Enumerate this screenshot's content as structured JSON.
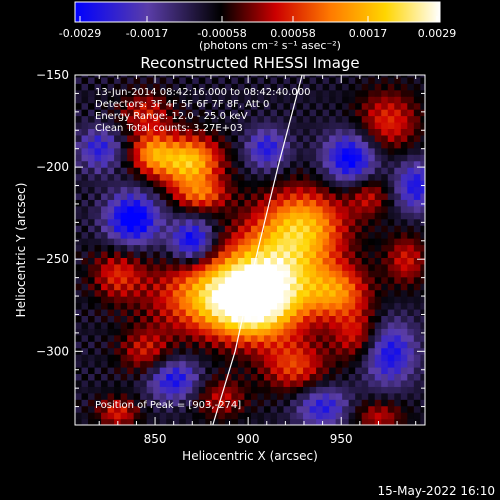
{
  "colorbar": {
    "tick_labels": [
      "-0.0029",
      "-0.0017",
      "-0.00058",
      "0.00058",
      "0.0017",
      "0.0029"
    ],
    "unit_label": "(photons cm⁻² s⁻¹ asec⁻²)",
    "range": [
      -0.0029,
      0.0029
    ],
    "colors": [
      "#0000ff",
      "#5a3da8",
      "#000000",
      "#cc0000",
      "#ff7a00",
      "#ffd500",
      "#ffffff"
    ]
  },
  "chart_data": {
    "type": "heatmap",
    "title": "Reconstructed RHESSI Image",
    "xlabel": "Heliocentric X (arcsec)",
    "ylabel": "Heliocentric Y (arcsec)",
    "xlim": [
      807,
      995
    ],
    "ylim": [
      -340,
      -150
    ],
    "x_ticks": [
      850,
      900,
      950
    ],
    "y_ticks": [
      -150,
      -200,
      -250,
      -300
    ],
    "annotations": [
      "13-Jun-2014 08:42:16.000 to 08:42:40.000",
      "Detectors: 3F 4F 5F 6F 7F 8F, Att 0",
      "Energy Range: 12.0 - 25.0 keV",
      "Clean     Total counts: 3.27E+03"
    ],
    "peak_label": "Position of Peak = [903,-274]",
    "peak": [
      903,
      -274
    ],
    "limb_points": [
      [
        881,
        -340
      ],
      [
        893,
        -300
      ],
      [
        904,
        -250
      ],
      [
        916,
        -200
      ],
      [
        929,
        -150
      ]
    ],
    "intensity_regions": [
      {
        "x": 868,
        "y": -197,
        "sx": 12,
        "sy": 10,
        "amp": 0.0028
      },
      {
        "x": 848,
        "y": -192,
        "sx": 8,
        "sy": 8,
        "amp": 0.0018
      },
      {
        "x": 875,
        "y": -215,
        "sx": 10,
        "sy": 6,
        "amp": 0.0015
      },
      {
        "x": 903,
        "y": -274,
        "sx": 16,
        "sy": 14,
        "amp": 0.0029
      },
      {
        "x": 915,
        "y": -255,
        "sx": 20,
        "sy": 18,
        "amp": 0.0024
      },
      {
        "x": 880,
        "y": -270,
        "sx": 22,
        "sy": 14,
        "amp": 0.0022
      },
      {
        "x": 930,
        "y": -230,
        "sx": 16,
        "sy": 14,
        "amp": 0.0021
      },
      {
        "x": 948,
        "y": -268,
        "sx": 12,
        "sy": 10,
        "amp": 0.0018
      },
      {
        "x": 960,
        "y": -292,
        "sx": 10,
        "sy": 10,
        "amp": 0.0014
      },
      {
        "x": 830,
        "y": -258,
        "sx": 10,
        "sy": 10,
        "amp": 0.0013
      },
      {
        "x": 845,
        "y": -300,
        "sx": 10,
        "sy": 9,
        "amp": 0.0012
      },
      {
        "x": 925,
        "y": -308,
        "sx": 12,
        "sy": 10,
        "amp": 0.0015
      },
      {
        "x": 975,
        "y": -175,
        "sx": 12,
        "sy": 12,
        "amp": 0.0014
      },
      {
        "x": 965,
        "y": -215,
        "sx": 8,
        "sy": 8,
        "amp": 0.0011
      },
      {
        "x": 845,
        "y": -170,
        "sx": 10,
        "sy": 8,
        "amp": 0.0012
      },
      {
        "x": 985,
        "y": -250,
        "sx": 8,
        "sy": 10,
        "amp": 0.0012
      },
      {
        "x": 830,
        "y": -333,
        "sx": 8,
        "sy": 6,
        "amp": 0.0013
      },
      {
        "x": 885,
        "y": -325,
        "sx": 10,
        "sy": 8,
        "amp": 0.0011
      },
      {
        "x": 970,
        "y": -335,
        "sx": 10,
        "sy": 6,
        "amp": 0.0011
      },
      {
        "x": 870,
        "y": -240,
        "sx": 8,
        "sy": 8,
        "amp": -0.0022
      },
      {
        "x": 838,
        "y": -228,
        "sx": 10,
        "sy": 10,
        "amp": -0.0024
      },
      {
        "x": 955,
        "y": -195,
        "sx": 10,
        "sy": 10,
        "amp": -0.0022
      },
      {
        "x": 975,
        "y": -300,
        "sx": 10,
        "sy": 12,
        "amp": -0.002
      },
      {
        "x": 860,
        "y": -315,
        "sx": 10,
        "sy": 8,
        "amp": -0.0018
      },
      {
        "x": 910,
        "y": -190,
        "sx": 8,
        "sy": 8,
        "amp": -0.0016
      },
      {
        "x": 940,
        "y": -330,
        "sx": 10,
        "sy": 8,
        "amp": -0.0016
      },
      {
        "x": 820,
        "y": -190,
        "sx": 8,
        "sy": 8,
        "amp": -0.0015
      },
      {
        "x": 990,
        "y": -210,
        "sx": 8,
        "sy": 10,
        "amp": -0.0017
      }
    ]
  },
  "footer": {
    "timestamp": "15-May-2022 16:10"
  }
}
